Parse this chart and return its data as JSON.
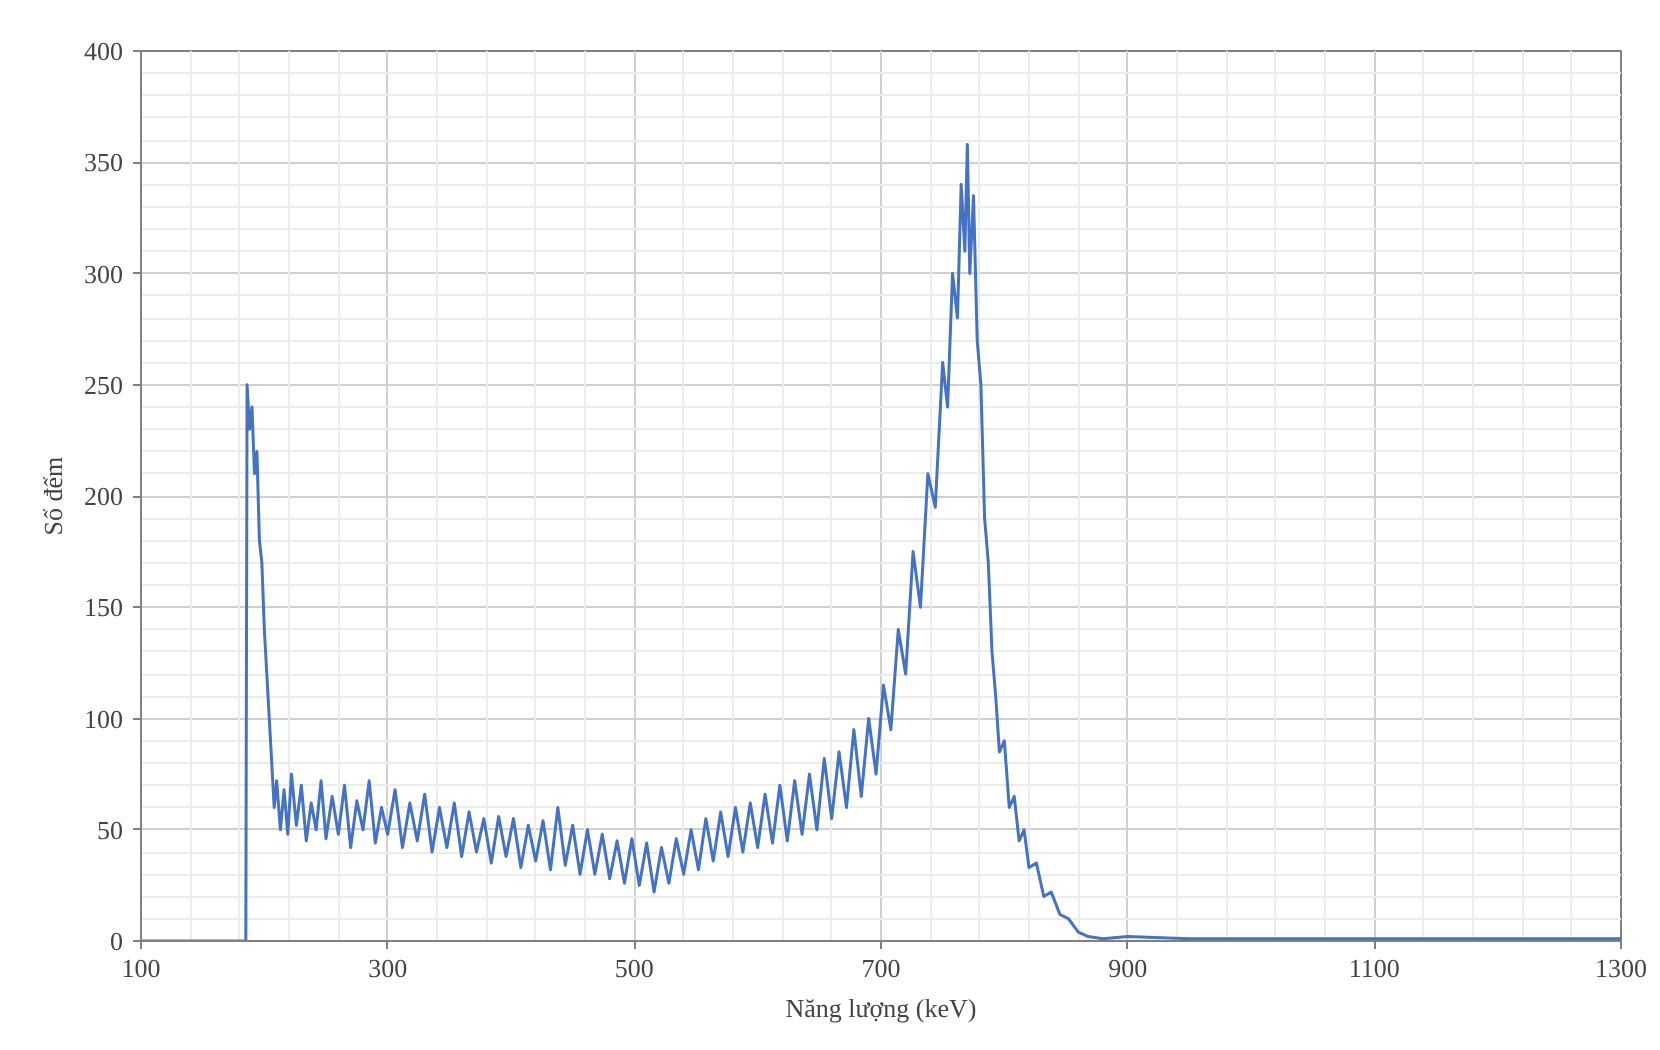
{
  "chart_data": {
    "type": "line",
    "xlabel": "Năng lượng (keV)",
    "ylabel": "Số đếm",
    "xlim": [
      100,
      1300
    ],
    "xticks": [
      100,
      300,
      500,
      700,
      900,
      1100,
      1300
    ],
    "ylim": [
      0,
      400
    ],
    "yticks": [
      0,
      50,
      100,
      150,
      200,
      250,
      300,
      350,
      400
    ],
    "grid": true,
    "marker": "none",
    "line_style": "solid",
    "series": [
      {
        "color": "#4472c4",
        "x": [
          100,
          185,
          186,
          188,
          190,
          192,
          194,
          196,
          198,
          200,
          202,
          204,
          206,
          208,
          210,
          213,
          216,
          219,
          222,
          226,
          230,
          234,
          238,
          242,
          246,
          250,
          255,
          260,
          265,
          270,
          275,
          280,
          285,
          290,
          295,
          300,
          306,
          312,
          318,
          324,
          330,
          336,
          342,
          348,
          354,
          360,
          366,
          372,
          378,
          384,
          390,
          396,
          402,
          408,
          414,
          420,
          426,
          432,
          438,
          444,
          450,
          456,
          462,
          468,
          474,
          480,
          486,
          492,
          498,
          504,
          510,
          516,
          522,
          528,
          534,
          540,
          546,
          552,
          558,
          564,
          570,
          576,
          582,
          588,
          594,
          600,
          606,
          612,
          618,
          624,
          630,
          636,
          642,
          648,
          654,
          660,
          666,
          672,
          678,
          684,
          690,
          696,
          702,
          708,
          714,
          720,
          726,
          732,
          738,
          744,
          750,
          754,
          758,
          762,
          765,
          768,
          770,
          772,
          775,
          778,
          781,
          784,
          787,
          790,
          793,
          796,
          800,
          804,
          808,
          812,
          816,
          820,
          826,
          832,
          838,
          845,
          852,
          860,
          868,
          880,
          900,
          950,
          1000,
          1100,
          1200,
          1300
        ],
        "values": [
          0,
          0,
          250,
          230,
          240,
          210,
          220,
          180,
          170,
          140,
          120,
          100,
          80,
          60,
          72,
          50,
          68,
          48,
          75,
          52,
          70,
          45,
          62,
          50,
          72,
          46,
          65,
          48,
          70,
          42,
          63,
          50,
          72,
          44,
          60,
          48,
          68,
          42,
          62,
          45,
          66,
          40,
          60,
          42,
          62,
          38,
          58,
          40,
          55,
          35,
          56,
          38,
          55,
          33,
          52,
          36,
          54,
          32,
          60,
          34,
          52,
          30,
          50,
          30,
          48,
          28,
          45,
          26,
          46,
          25,
          44,
          22,
          42,
          26,
          46,
          30,
          50,
          32,
          55,
          36,
          58,
          38,
          60,
          40,
          62,
          42,
          66,
          44,
          70,
          45,
          72,
          48,
          75,
          50,
          82,
          55,
          85,
          60,
          95,
          65,
          100,
          75,
          115,
          95,
          140,
          120,
          175,
          150,
          210,
          195,
          260,
          240,
          300,
          280,
          340,
          310,
          358,
          300,
          335,
          270,
          250,
          190,
          170,
          130,
          110,
          85,
          90,
          60,
          65,
          45,
          50,
          33,
          35,
          20,
          22,
          12,
          10,
          4,
          2,
          1,
          2,
          1,
          1,
          1,
          1,
          1
        ]
      }
    ]
  }
}
